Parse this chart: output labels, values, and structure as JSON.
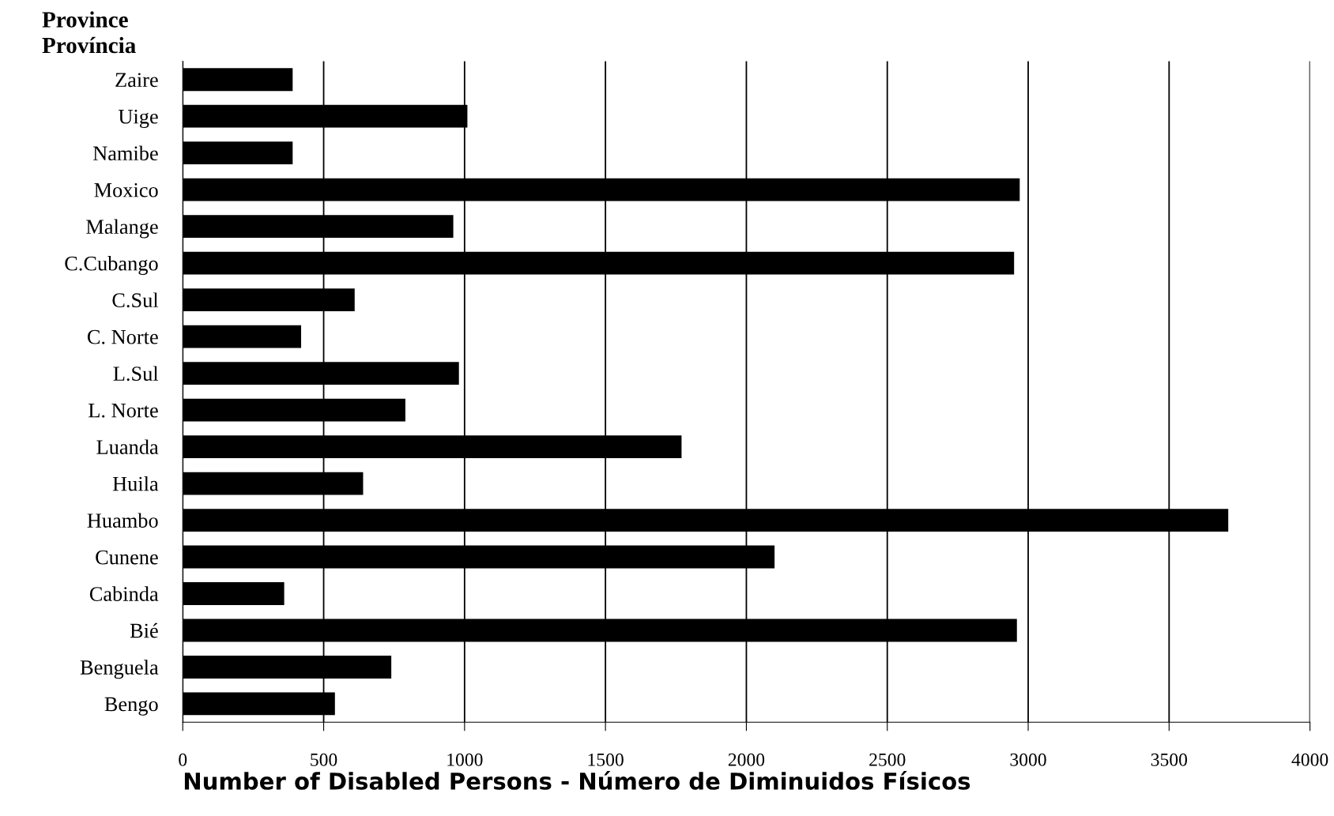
{
  "chart_data": {
    "type": "bar",
    "orientation": "horizontal",
    "ylabel": "Province\nProvíncia",
    "xlabel": "Number of Disabled Persons - Número de Diminuidos Físicos",
    "categories": [
      "Zaire",
      "Uige",
      "Namibe",
      "Moxico",
      "Malange",
      "C.Cubango",
      "C.Sul",
      "C. Norte",
      "L.Sul",
      "L. Norte",
      "Luanda",
      "Huila",
      "Huambo",
      "Cunene",
      "Cabinda",
      "Bié",
      "Benguela",
      "Bengo"
    ],
    "values": [
      390,
      1010,
      390,
      2970,
      960,
      2950,
      610,
      420,
      980,
      790,
      1770,
      640,
      3710,
      2100,
      360,
      2960,
      740,
      540
    ],
    "color": "#000000",
    "xlim": [
      0,
      4000
    ],
    "xticks": [
      0,
      500,
      1000,
      1500,
      2000,
      2500,
      3000,
      3500,
      4000
    ],
    "grid": "x",
    "legend": false
  }
}
